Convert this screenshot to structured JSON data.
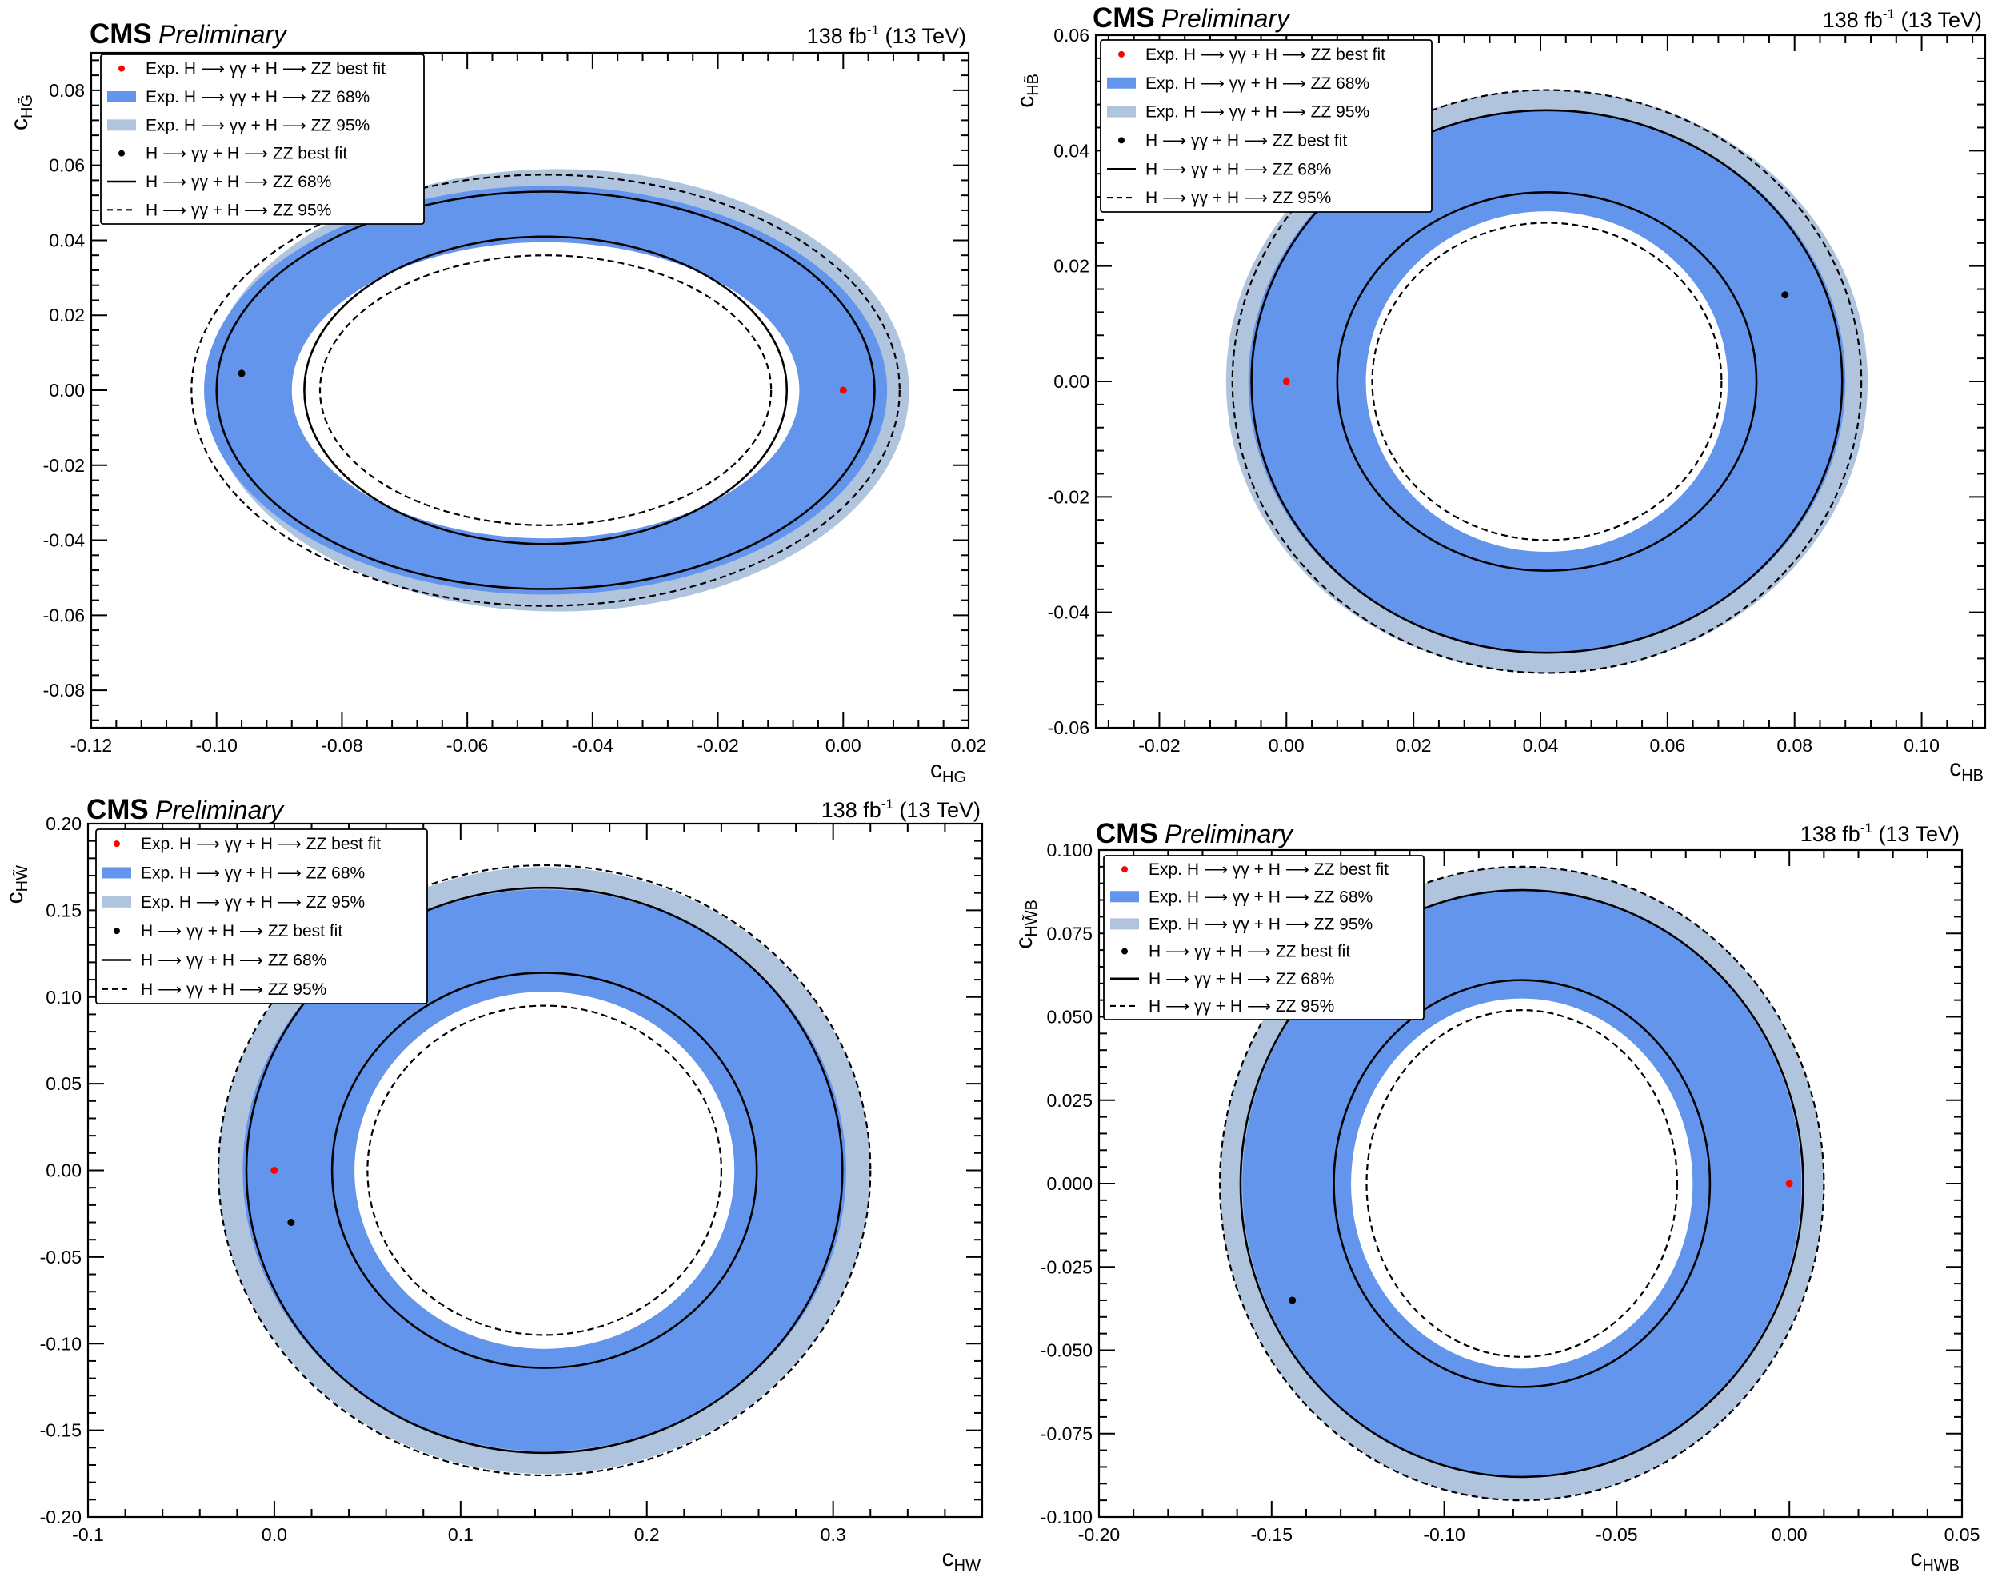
{
  "experiment": "CMS",
  "status": "Preliminary",
  "lumi_main": "138 fb",
  "lumi_sup": "-1",
  "lumi_energy": " (13 TeV)",
  "legend_labels": [
    "Exp. H ⟶ γγ + H ⟶ ZZ best fit",
    "Exp. H ⟶ γγ + H ⟶ ZZ 68%",
    "Exp. H ⟶ γγ + H ⟶ ZZ 95%",
    "H ⟶ γγ + H ⟶ ZZ best fit",
    "H ⟶ γγ + H ⟶ ZZ 68%",
    "H ⟶ γγ + H ⟶ ZZ 95%"
  ],
  "colors": {
    "exp_68": "#6495ed",
    "exp_95": "#b0c4de",
    "exp_best_fit": "#ff0000",
    "obs_best_fit": "#000000",
    "obs_contour": "#000000"
  },
  "chart_data": [
    {
      "type": "contour",
      "xlabel_main": "c",
      "xlabel_sub": "HG",
      "ylabel_main": "c",
      "ylabel_sub": "HG̃",
      "xlim": [
        -0.12,
        0.02
      ],
      "ylim": [
        -0.09,
        0.09
      ],
      "xticks": [
        -0.12,
        -0.1,
        -0.08,
        -0.06,
        -0.04,
        -0.02,
        0.0,
        0.02
      ],
      "xtick_labels": [
        "-0.12",
        "-0.10",
        "-0.08",
        "-0.06",
        "-0.04",
        "-0.02",
        "0.00",
        "0.02"
      ],
      "yticks": [
        -0.08,
        -0.06,
        -0.04,
        -0.02,
        0.0,
        0.02,
        0.04,
        0.06,
        0.08
      ],
      "ytick_labels": [
        "-0.08",
        "-0.06",
        "-0.04",
        "-0.02",
        "0.00",
        "0.02",
        "0.04",
        "0.06",
        "0.08"
      ],
      "exp_best_fit": [
        0.0,
        0.0
      ],
      "obs_best_fit": [
        -0.096,
        0.0045
      ],
      "exp_95": {
        "center": [
          -0.0455,
          0.0
        ],
        "outer": [
          0.056,
          0.059
        ],
        "inner": [
          0.0435,
          0.043
        ]
      },
      "exp_68": {
        "center": [
          -0.0475,
          0.0
        ],
        "outer": [
          0.0545,
          0.0545
        ],
        "inner": [
          0.0405,
          0.0395
        ]
      },
      "obs_68": {
        "center": [
          -0.0475,
          0.0
        ],
        "outer": [
          0.0525,
          0.053
        ],
        "inner": [
          0.0385,
          0.041
        ]
      },
      "obs_95": {
        "center": [
          -0.0475,
          0.0
        ],
        "outer": [
          0.0565,
          0.0575
        ],
        "inner": [
          0.036,
          0.036
        ]
      }
    },
    {
      "type": "contour",
      "xlabel_main": "c",
      "xlabel_sub": "HB",
      "ylabel_main": "c",
      "ylabel_sub": "HB̃",
      "xlim": [
        -0.03,
        0.11
      ],
      "ylim": [
        -0.06,
        0.06
      ],
      "xticks": [
        -0.02,
        0.0,
        0.02,
        0.04,
        0.06,
        0.08,
        0.1
      ],
      "xtick_labels": [
        "-0.02",
        "0.00",
        "0.02",
        "0.04",
        "0.06",
        "0.08",
        "0.10"
      ],
      "yticks": [
        -0.06,
        -0.04,
        -0.02,
        0.0,
        0.02,
        0.04,
        0.06
      ],
      "ytick_labels": [
        "-0.06",
        "-0.04",
        "-0.02",
        "0.00",
        "0.02",
        "0.04",
        "0.06"
      ],
      "exp_best_fit": [
        0.0,
        0.0
      ],
      "obs_best_fit": [
        0.0785,
        0.015
      ],
      "exp_95": {
        "center": [
          0.041,
          0.0
        ],
        "outer": [
          0.0505,
          0.0505
        ],
        "inner": [
          0.0325,
          0.0345
        ]
      },
      "exp_68": {
        "center": [
          0.041,
          0.0
        ],
        "outer": [
          0.047,
          0.047
        ],
        "inner": [
          0.0285,
          0.0295
        ]
      },
      "obs_68": {
        "center": [
          0.041,
          0.0
        ],
        "outer": [
          0.0465,
          0.047
        ],
        "inner": [
          0.033,
          0.0328
        ]
      },
      "obs_95": {
        "center": [
          0.041,
          0.0
        ],
        "outer": [
          0.0495,
          0.0505
        ],
        "inner": [
          0.0275,
          0.0275
        ]
      }
    },
    {
      "type": "contour",
      "xlabel_main": "c",
      "xlabel_sub": "HW",
      "ylabel_main": "c",
      "ylabel_sub": "HW̃",
      "xlim": [
        -0.1,
        0.38
      ],
      "ylim": [
        -0.2,
        0.2
      ],
      "xticks": [
        -0.1,
        0.0,
        0.1,
        0.2,
        0.3
      ],
      "xtick_labels": [
        "-0.1",
        "0.0",
        "0.1",
        "0.2",
        "0.3"
      ],
      "yticks": [
        -0.2,
        -0.15,
        -0.1,
        -0.05,
        0.0,
        0.05,
        0.1,
        0.15,
        0.2
      ],
      "ytick_labels": [
        "-0.20",
        "-0.15",
        "-0.10",
        "-0.05",
        "0.00",
        "0.05",
        "0.10",
        "0.15",
        "0.20"
      ],
      "exp_best_fit": [
        0.0,
        0.0
      ],
      "obs_best_fit": [
        0.009,
        -0.03
      ],
      "exp_95": {
        "center": [
          0.145,
          0.0
        ],
        "outer": [
          0.175,
          0.175
        ],
        "inner": [
          0.12,
          0.12
        ]
      },
      "exp_68": {
        "center": [
          0.145,
          0.0
        ],
        "outer": [
          0.162,
          0.162
        ],
        "inner": [
          0.102,
          0.103
        ]
      },
      "obs_68": {
        "center": [
          0.145,
          0.0
        ],
        "outer": [
          0.16,
          0.163
        ],
        "inner": [
          0.114,
          0.114
        ]
      },
      "obs_95": {
        "center": [
          0.145,
          0.0
        ],
        "outer": [
          0.175,
          0.176
        ],
        "inner": [
          0.095,
          0.095
        ]
      }
    },
    {
      "type": "contour",
      "xlabel_main": "c",
      "xlabel_sub": "HWB",
      "ylabel_main": "c",
      "ylabel_sub": "HW̃B",
      "xlim": [
        -0.2,
        0.05
      ],
      "ylim": [
        -0.1,
        0.1
      ],
      "xticks": [
        -0.2,
        -0.15,
        -0.1,
        -0.05,
        0.0,
        0.05
      ],
      "xtick_labels": [
        "-0.20",
        "-0.15",
        "-0.10",
        "-0.05",
        "0.00",
        "0.05"
      ],
      "yticks": [
        -0.1,
        -0.075,
        -0.05,
        -0.025,
        0.0,
        0.025,
        0.05,
        0.075,
        0.1
      ],
      "ytick_labels": [
        "-0.100",
        "-0.075",
        "-0.050",
        "-0.025",
        "0.000",
        "0.025",
        "0.050",
        "0.075",
        "0.100"
      ],
      "exp_best_fit": [
        0.0,
        0.0
      ],
      "obs_best_fit": [
        -0.144,
        -0.035
      ],
      "exp_95": {
        "center": [
          -0.0775,
          0.0
        ],
        "outer": [
          0.0875,
          0.095
        ],
        "inner": [
          0.0555,
          0.062
        ]
      },
      "exp_68": {
        "center": [
          -0.0775,
          0.0
        ],
        "outer": [
          0.081,
          0.088
        ],
        "inner": [
          0.0495,
          0.0555
        ]
      },
      "obs_68": {
        "center": [
          -0.0775,
          0.0
        ],
        "outer": [
          0.0815,
          0.088
        ],
        "inner": [
          0.0545,
          0.061
        ]
      },
      "obs_95": {
        "center": [
          -0.0775,
          0.0
        ],
        "outer": [
          0.0875,
          0.095
        ],
        "inner": [
          0.045,
          0.052
        ]
      }
    }
  ]
}
